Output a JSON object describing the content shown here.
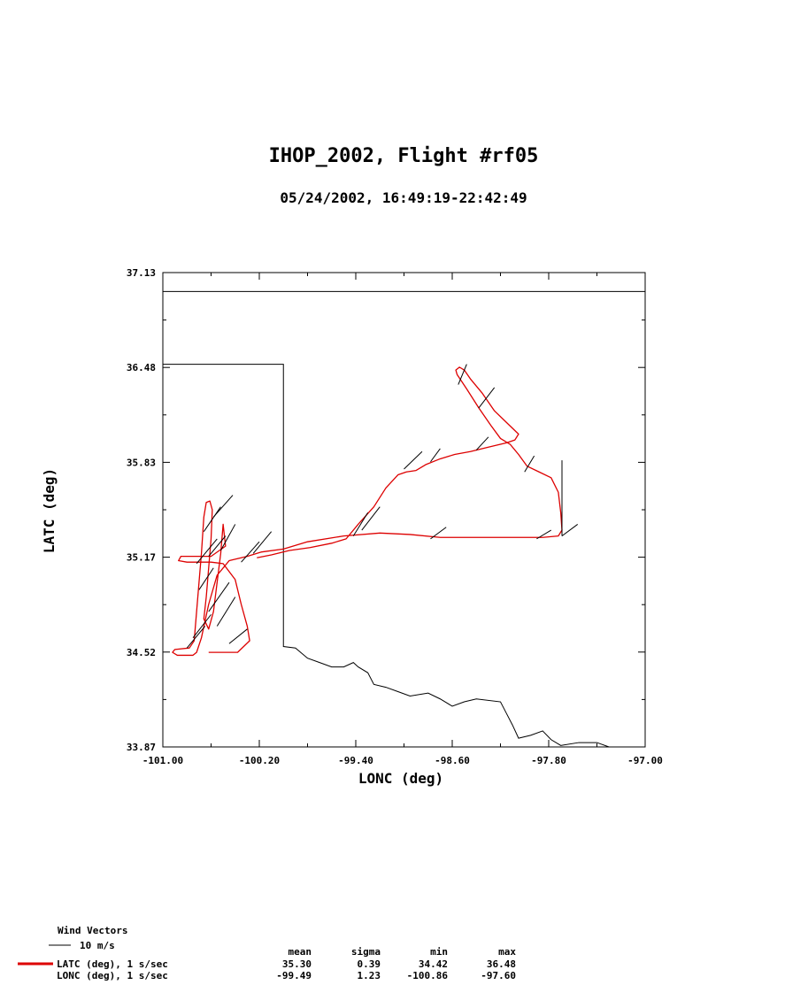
{
  "chart_data": {
    "type": "line",
    "title": "IHOP_2002, Flight #rf05",
    "subtitle": "05/24/2002, 16:49:19-22:42:49",
    "xlabel": "LONC (deg)",
    "ylabel": "LATC (deg)",
    "xlim": [
      -101.0,
      -97.0
    ],
    "ylim": [
      33.87,
      37.13
    ],
    "x_ticks": [
      "-101.00",
      "-100.20",
      "-99.40",
      "-98.60",
      "-97.80",
      "-97.00"
    ],
    "y_ticks": [
      "37.13",
      "36.48",
      "35.83",
      "35.17",
      "34.52",
      "33.87"
    ],
    "colors": {
      "track": "#dd0000",
      "map": "#000000",
      "vectors": "#000000"
    },
    "track": [
      [
        -100.22,
        35.17
      ],
      [
        -100.1,
        35.19
      ],
      [
        -99.95,
        35.22
      ],
      [
        -99.78,
        35.24
      ],
      [
        -99.6,
        35.27
      ],
      [
        -99.48,
        35.3
      ],
      [
        -99.38,
        35.4
      ],
      [
        -99.25,
        35.52
      ],
      [
        -99.15,
        35.65
      ],
      [
        -99.05,
        35.74
      ],
      [
        -98.98,
        35.76
      ],
      [
        -98.9,
        35.77
      ],
      [
        -98.82,
        35.81
      ],
      [
        -98.7,
        35.85
      ],
      [
        -98.58,
        35.88
      ],
      [
        -98.45,
        35.9
      ],
      [
        -98.3,
        35.93
      ],
      [
        -98.15,
        35.96
      ],
      [
        -98.08,
        35.98
      ],
      [
        -98.05,
        36.02
      ],
      [
        -98.15,
        36.1
      ],
      [
        -98.25,
        36.18
      ],
      [
        -98.35,
        36.3
      ],
      [
        -98.45,
        36.4
      ],
      [
        -98.5,
        36.46
      ],
      [
        -98.54,
        36.48
      ],
      [
        -98.57,
        36.46
      ],
      [
        -98.56,
        36.43
      ],
      [
        -98.48,
        36.33
      ],
      [
        -98.38,
        36.2
      ],
      [
        -98.28,
        36.08
      ],
      [
        -98.2,
        35.99
      ],
      [
        -98.12,
        35.95
      ],
      [
        -98.05,
        35.88
      ],
      [
        -97.98,
        35.8
      ],
      [
        -97.88,
        35.76
      ],
      [
        -97.78,
        35.72
      ],
      [
        -97.72,
        35.62
      ],
      [
        -97.7,
        35.48
      ],
      [
        -97.69,
        35.36
      ],
      [
        -97.72,
        35.32
      ],
      [
        -97.85,
        35.31
      ],
      [
        -98.1,
        35.31
      ],
      [
        -98.4,
        35.31
      ],
      [
        -98.7,
        35.31
      ],
      [
        -98.95,
        35.33
      ],
      [
        -99.2,
        35.34
      ],
      [
        -99.5,
        35.32
      ],
      [
        -99.8,
        35.28
      ],
      [
        -100.0,
        35.23
      ],
      [
        -100.18,
        35.21
      ],
      [
        -100.3,
        35.18
      ],
      [
        -100.45,
        35.15
      ],
      [
        -100.55,
        35.05
      ],
      [
        -100.62,
        34.85
      ],
      [
        -100.68,
        34.62
      ],
      [
        -100.72,
        34.52
      ],
      [
        -100.75,
        34.5
      ],
      [
        -100.88,
        34.5
      ],
      [
        -100.92,
        34.52
      ],
      [
        -100.9,
        34.54
      ],
      [
        -100.78,
        34.55
      ],
      [
        -100.74,
        34.6
      ],
      [
        -100.72,
        34.8
      ],
      [
        -100.7,
        35.0
      ],
      [
        -100.68,
        35.2
      ],
      [
        -100.66,
        35.45
      ],
      [
        -100.64,
        35.55
      ],
      [
        -100.61,
        35.56
      ],
      [
        -100.59,
        35.5
      ],
      [
        -100.6,
        35.3
      ],
      [
        -100.62,
        35.1
      ],
      [
        -100.64,
        34.9
      ],
      [
        -100.66,
        34.75
      ],
      [
        -100.62,
        34.68
      ],
      [
        -100.58,
        34.8
      ],
      [
        -100.55,
        35.0
      ],
      [
        -100.52,
        35.2
      ],
      [
        -100.5,
        35.4
      ],
      [
        -100.48,
        35.25
      ],
      [
        -100.6,
        35.18
      ],
      [
        -100.85,
        35.18
      ],
      [
        -100.87,
        35.15
      ],
      [
        -100.8,
        35.14
      ],
      [
        -100.6,
        35.14
      ],
      [
        -100.5,
        35.13
      ],
      [
        -100.4,
        35.02
      ],
      [
        -100.35,
        34.85
      ],
      [
        -100.3,
        34.7
      ],
      [
        -100.28,
        34.6
      ],
      [
        -100.38,
        34.52
      ],
      [
        -100.62,
        34.52
      ]
    ],
    "map_lines": [
      [
        [
          -101.0,
          37.0
        ],
        [
          -97.0,
          37.0
        ]
      ],
      [
        [
          -101.0,
          36.5
        ],
        [
          -100.0,
          36.5
        ],
        [
          -100.0,
          34.56
        ],
        [
          -99.9,
          34.55
        ],
        [
          -99.8,
          34.48
        ],
        [
          -99.7,
          34.45
        ],
        [
          -99.6,
          34.42
        ],
        [
          -99.5,
          34.42
        ],
        [
          -99.42,
          34.45
        ],
        [
          -99.38,
          34.42
        ],
        [
          -99.3,
          34.38
        ],
        [
          -99.25,
          34.3
        ],
        [
          -99.15,
          34.28
        ],
        [
          -99.05,
          34.25
        ],
        [
          -98.95,
          34.22
        ],
        [
          -98.8,
          34.24
        ],
        [
          -98.7,
          34.2
        ],
        [
          -98.6,
          34.15
        ],
        [
          -98.5,
          34.18
        ],
        [
          -98.4,
          34.2
        ],
        [
          -98.2,
          34.18
        ],
        [
          -98.15,
          34.1
        ],
        [
          -98.1,
          34.02
        ],
        [
          -98.05,
          33.93
        ],
        [
          -97.95,
          33.95
        ],
        [
          -97.85,
          33.98
        ],
        [
          -97.78,
          33.92
        ],
        [
          -97.7,
          33.88
        ],
        [
          -97.55,
          33.9
        ],
        [
          -97.4,
          33.9
        ],
        [
          -97.3,
          33.87
        ]
      ]
    ],
    "wind_vectors": [
      [
        -98.55,
        36.36,
        -98.48,
        36.5
      ],
      [
        -98.38,
        36.2,
        -98.25,
        36.34
      ],
      [
        -98.78,
        35.83,
        -98.7,
        35.92
      ],
      [
        -99.0,
        35.78,
        -98.85,
        35.9
      ],
      [
        -98.4,
        35.91,
        -98.3,
        36.0
      ],
      [
        -98.0,
        35.76,
        -97.92,
        35.87
      ],
      [
        -97.69,
        35.32,
        -97.69,
        35.84
      ],
      [
        -97.69,
        35.32,
        -97.56,
        35.4
      ],
      [
        -97.9,
        35.3,
        -97.78,
        35.36
      ],
      [
        -98.78,
        35.3,
        -98.65,
        35.38
      ],
      [
        -99.35,
        35.36,
        -99.2,
        35.52
      ],
      [
        -99.42,
        35.32,
        -99.3,
        35.48
      ],
      [
        -100.25,
        35.2,
        -100.1,
        35.35
      ],
      [
        -100.35,
        35.14,
        -100.2,
        35.28
      ],
      [
        -100.52,
        35.22,
        -100.4,
        35.4
      ],
      [
        -100.62,
        35.18,
        -100.48,
        35.32
      ],
      [
        -100.72,
        35.13,
        -100.55,
        35.3
      ],
      [
        -100.62,
        34.8,
        -100.45,
        35.0
      ],
      [
        -100.55,
        34.7,
        -100.4,
        34.9
      ],
      [
        -100.75,
        34.62,
        -100.6,
        34.78
      ],
      [
        -100.8,
        34.55,
        -100.65,
        34.7
      ],
      [
        -100.45,
        34.58,
        -100.3,
        34.68
      ],
      [
        -100.58,
        35.45,
        -100.42,
        35.6
      ],
      [
        -100.66,
        35.35,
        -100.52,
        35.52
      ],
      [
        -100.7,
        34.95,
        -100.58,
        35.1
      ]
    ]
  },
  "legend": {
    "vectors_title": "Wind Vectors",
    "vectors_scale": "10 m/s",
    "stats_headers": [
      "mean",
      "sigma",
      "min",
      "max"
    ],
    "rows": [
      {
        "label": "LATC (deg), 1 s/sec",
        "mean": "35.30",
        "sigma": "0.39",
        "min": "34.42",
        "max": "36.48"
      },
      {
        "label": "LONC (deg), 1 s/sec",
        "mean": "-99.49",
        "sigma": "1.23",
        "min": "-100.86",
        "max": "-97.60"
      }
    ]
  }
}
